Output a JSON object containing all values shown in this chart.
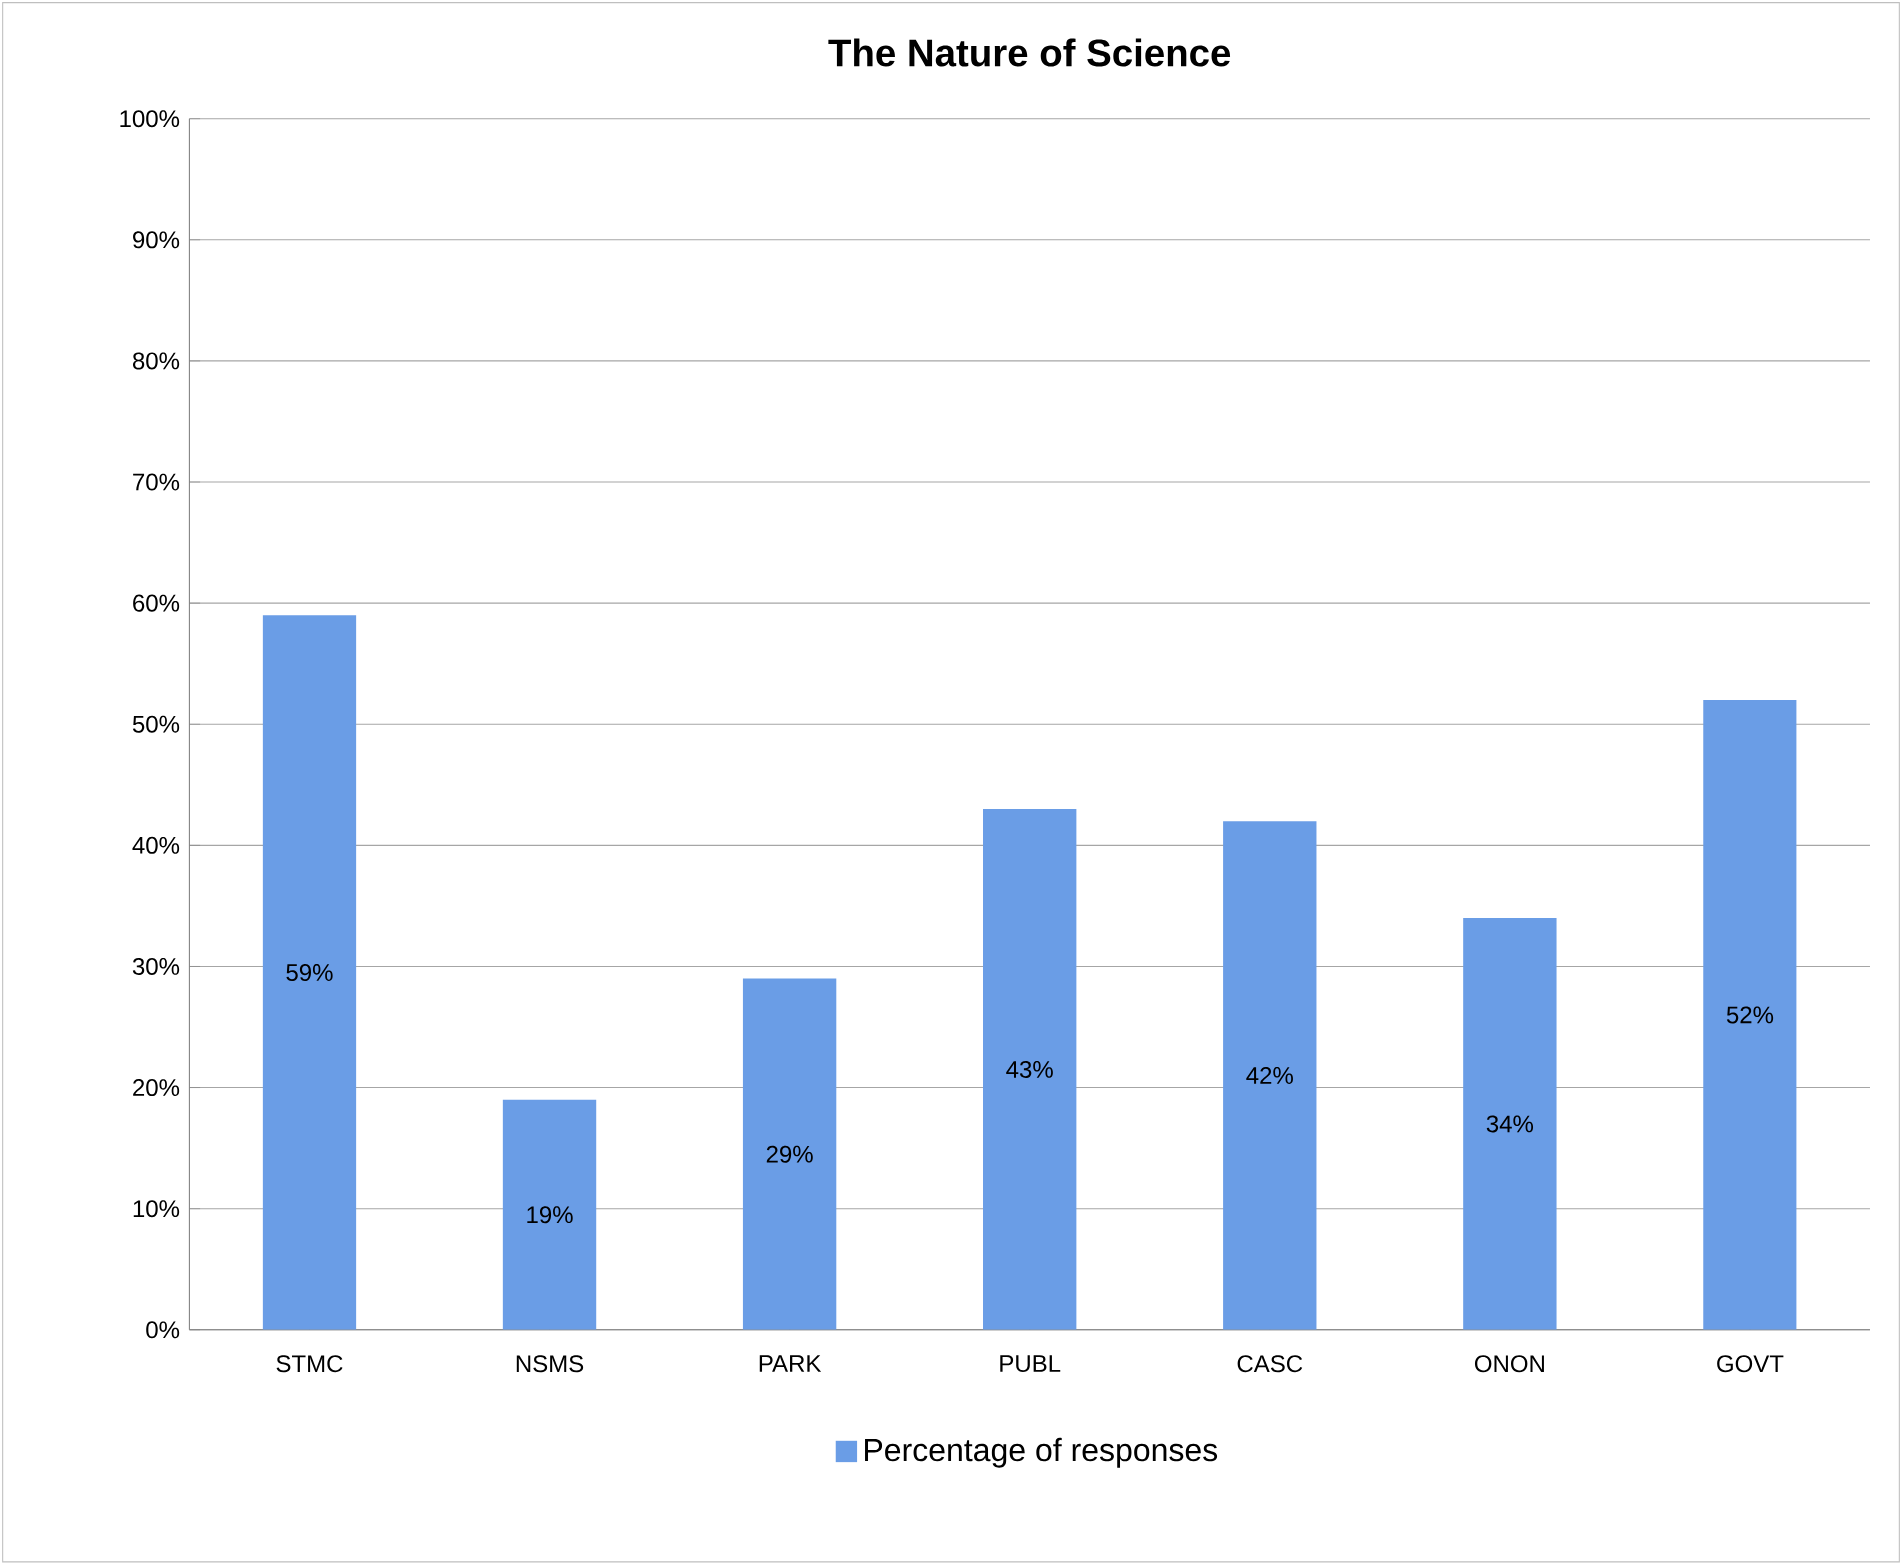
{
  "chart_data": {
    "type": "bar",
    "title": "The Nature of Science",
    "categories": [
      "STMC",
      "NSMS",
      "PARK",
      "PUBL",
      "CASC",
      "ONON",
      "GOVT"
    ],
    "series": [
      {
        "name": "Percentage of responses",
        "color": "#6a9de6",
        "values": [
          59,
          19,
          29,
          43,
          42,
          34,
          52
        ],
        "value_labels": [
          "59%",
          "19%",
          "29%",
          "43%",
          "42%",
          "34%",
          "52%"
        ]
      }
    ],
    "ylim": [
      0,
      100
    ],
    "yticks": [
      {
        "value": 0,
        "label": "0%"
      },
      {
        "value": 10,
        "label": "10%"
      },
      {
        "value": 20,
        "label": "20%"
      },
      {
        "value": 30,
        "label": "30%"
      },
      {
        "value": 40,
        "label": "40%"
      },
      {
        "value": 50,
        "label": "50%"
      },
      {
        "value": 60,
        "label": "60%"
      },
      {
        "value": 70,
        "label": "70%"
      },
      {
        "value": 80,
        "label": "80%"
      },
      {
        "value": 90,
        "label": "90%"
      },
      {
        "value": 100,
        "label": "100%"
      }
    ],
    "grid": "y",
    "legend": "bottom"
  }
}
